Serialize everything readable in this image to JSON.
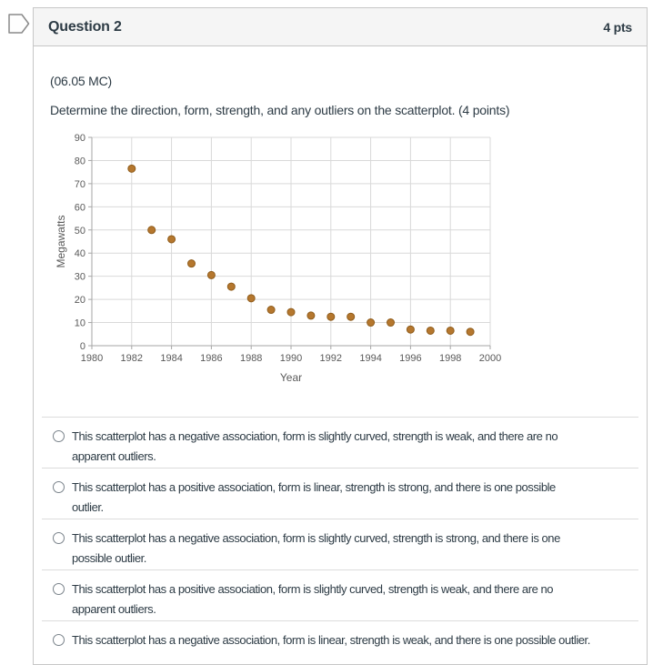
{
  "icons": {
    "flag": "flag-question-icon"
  },
  "header": {
    "title": "Question 2",
    "points": "4 pts"
  },
  "question": {
    "code": "(06.05 MC)",
    "prompt": "Determine the direction, form, strength, and any outliers on the scatterplot. (4 points)"
  },
  "chart_data": {
    "type": "scatter",
    "title": "",
    "xlabel": "Year",
    "ylabel": "Megawatts",
    "x": [
      1982,
      1983,
      1984,
      1985,
      1986,
      1987,
      1988,
      1989,
      1990,
      1991,
      1992,
      1993,
      1994,
      1995,
      1996,
      1997,
      1998,
      1999
    ],
    "y": [
      76.5,
      50,
      46,
      35.5,
      30.5,
      25.5,
      20.5,
      15.5,
      14.5,
      13,
      12.5,
      12.5,
      10,
      10,
      7,
      6.5,
      6.5,
      6
    ],
    "xlim": [
      1980,
      2000
    ],
    "ylim": [
      0,
      90
    ],
    "x_ticks": [
      1980,
      1982,
      1984,
      1986,
      1988,
      1990,
      1992,
      1994,
      1996,
      1998,
      2000
    ],
    "y_ticks": [
      0,
      10,
      20,
      30,
      40,
      50,
      60,
      70,
      80,
      90
    ],
    "grid": true,
    "legend": false,
    "point_color": "#b5772e",
    "point_border_color": "#8f5c1b",
    "grid_color": "#d9d9d9",
    "axis_color": "#a6a6a6",
    "tick_label_color": "#595959"
  },
  "options": [
    {
      "text": "This scatterplot has a negative association, form is slightly curved, strength is weak, and there are no\napparent outliers."
    },
    {
      "text": "This scatterplot has a positive association, form is linear, strength is strong, and there is one possible\noutlier."
    },
    {
      "text": "This scatterplot has a negative association, form is slightly curved, strength is strong, and there is one\npossible outlier."
    },
    {
      "text": "This scatterplot has a positive association, form is slightly curved, strength is weak, and there are no\napparent outliers."
    },
    {
      "text": "This scatterplot has a negative association, form is linear, strength is weak, and there is one possible outlier."
    }
  ]
}
